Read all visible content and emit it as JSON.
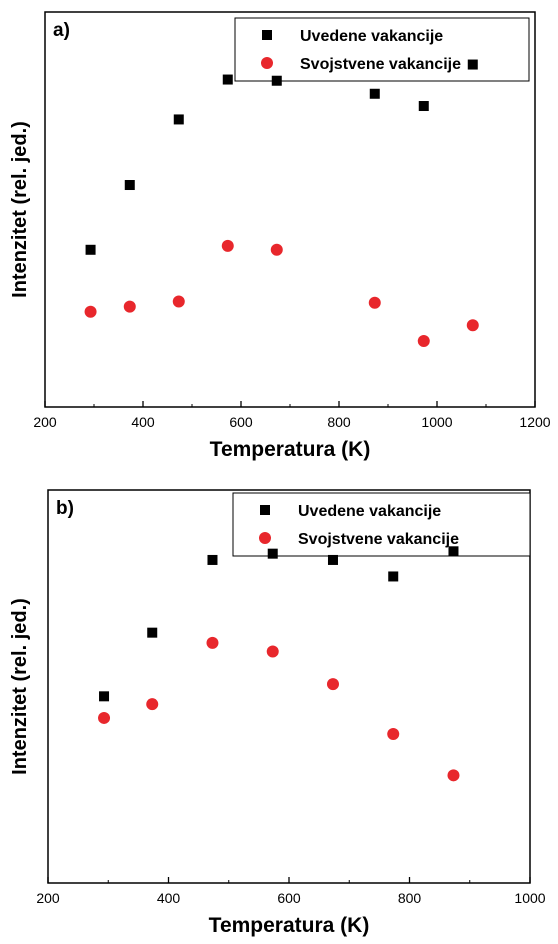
{
  "chart_data": [
    {
      "type": "scatter",
      "panel_label": "a)",
      "xlabel": "Temperatura (K)",
      "ylabel": "Intenzitet (rel. jed.)",
      "xlim": [
        200,
        1200
      ],
      "xticks": [
        200,
        400,
        600,
        800,
        1000,
        1200
      ],
      "y_scale_range": [
        0,
        100
      ],
      "legend_position": "top-right",
      "series": [
        {
          "name": "Uvedene vakancije",
          "marker": "square",
          "color": "#000000",
          "x": [
            293,
            373,
            473,
            573,
            673,
            873,
            973,
            1073
          ],
          "y": [
            39.8,
            56.2,
            72.8,
            82.9,
            82.6,
            79.3,
            76.2,
            86.7
          ]
        },
        {
          "name": "Svojstvene vakancije",
          "marker": "circle",
          "color": "#e8272c",
          "x": [
            293,
            373,
            473,
            573,
            673,
            873,
            973,
            1073
          ],
          "y": [
            24.1,
            25.4,
            26.7,
            40.8,
            39.8,
            26.4,
            16.7,
            20.7
          ]
        }
      ]
    },
    {
      "type": "scatter",
      "panel_label": "b)",
      "xlabel": "Temperatura (K)",
      "ylabel": "Intenzitet (rel. jed.)",
      "xlim": [
        200,
        1000
      ],
      "xticks": [
        200,
        400,
        600,
        800,
        1000
      ],
      "y_scale_range": [
        0,
        100
      ],
      "legend_position": "top-right",
      "series": [
        {
          "name": "Uvedene vakancije",
          "marker": "square",
          "color": "#000000",
          "x": [
            293,
            373,
            473,
            573,
            673,
            773,
            873
          ],
          "y": [
            47.5,
            63.7,
            82.2,
            83.8,
            82.2,
            78.0,
            84.4
          ]
        },
        {
          "name": "Svojstvene vakancije",
          "marker": "circle",
          "color": "#e8272c",
          "x": [
            293,
            373,
            473,
            573,
            673,
            773,
            873
          ],
          "y": [
            42.0,
            45.5,
            61.1,
            58.9,
            50.6,
            37.9,
            27.4
          ]
        }
      ]
    }
  ]
}
